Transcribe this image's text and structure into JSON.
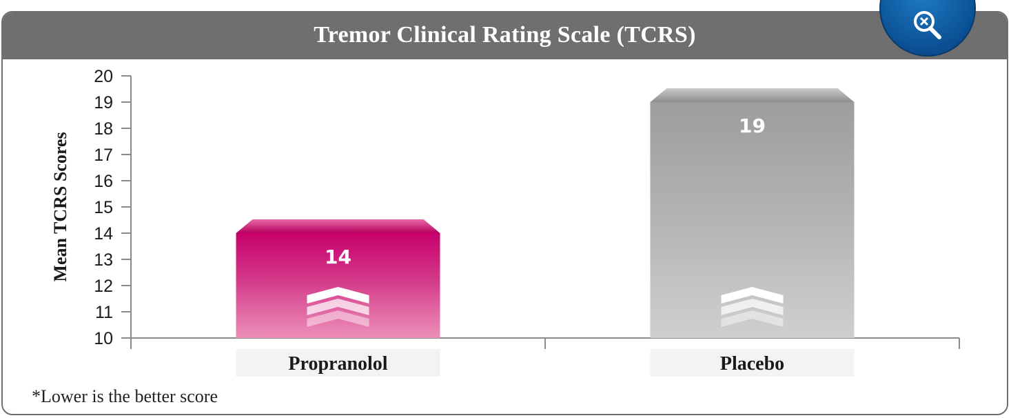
{
  "chart_data": {
    "type": "bar",
    "title": "Tremor Clinical Rating Scale (TCRS)",
    "ylabel": "Mean TCRS Scores",
    "xlabel": "",
    "categories": [
      "Propranolol",
      "Placebo"
    ],
    "values": [
      14,
      19
    ],
    "value_labels": [
      "14",
      "19"
    ],
    "ylim": [
      10,
      20
    ],
    "yticks": [
      "10",
      "11",
      "12",
      "13",
      "14",
      "15",
      "16",
      "17",
      "18",
      "19",
      "20"
    ],
    "colors": [
      "#c8006e",
      "#a6a6a6"
    ],
    "grid": false,
    "legend": "none"
  },
  "footnote": "*Lower is the better score",
  "icons": {
    "zoom": "zoom-magnifier-icon"
  }
}
